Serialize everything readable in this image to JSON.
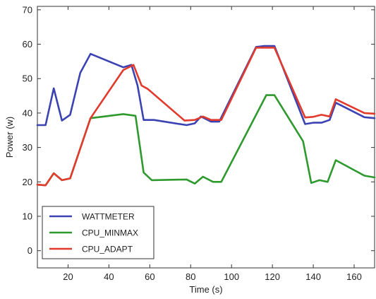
{
  "chart_data": {
    "type": "line",
    "xlabel": "Time (s)",
    "ylabel": "Power (w)",
    "xlim": [
      5,
      170
    ],
    "ylim": [
      -5,
      71
    ],
    "xticks": [
      20,
      40,
      60,
      80,
      100,
      120,
      140,
      160
    ],
    "yticks": [
      0,
      10,
      20,
      30,
      40,
      50,
      60,
      70
    ],
    "grid": false,
    "legend_position": "bottom-left",
    "series": [
      {
        "name": "WATTMETER",
        "color": "#3a43b1",
        "points": [
          [
            5,
            36.5
          ],
          [
            9,
            36.5
          ],
          [
            13,
            47.2
          ],
          [
            17,
            37.8
          ],
          [
            21,
            39.5
          ],
          [
            26,
            51.7
          ],
          [
            31,
            57.2
          ],
          [
            47,
            53.3
          ],
          [
            51,
            54.0
          ],
          [
            54,
            48.0
          ],
          [
            57,
            38.0
          ],
          [
            62,
            38.0
          ],
          [
            78,
            36.5
          ],
          [
            82,
            37.0
          ],
          [
            85,
            39.0
          ],
          [
            90,
            37.5
          ],
          [
            94,
            37.5
          ],
          [
            112,
            59.2
          ],
          [
            116,
            59.5
          ],
          [
            121,
            59.5
          ],
          [
            136,
            36.8
          ],
          [
            140,
            37.2
          ],
          [
            144,
            37.2
          ],
          [
            148,
            38.0
          ],
          [
            151,
            43.0
          ],
          [
            165,
            38.8
          ],
          [
            170,
            38.5
          ]
        ]
      },
      {
        "name": "CPU_MINMAX",
        "color": "#2e9a2e",
        "points": [
          [
            5,
            19.2
          ],
          [
            9,
            19.0
          ],
          [
            13,
            22.5
          ],
          [
            17,
            20.5
          ],
          [
            21,
            21.0
          ],
          [
            31,
            38.5
          ],
          [
            47,
            39.7
          ],
          [
            53,
            39.2
          ],
          [
            57,
            22.7
          ],
          [
            61,
            20.5
          ],
          [
            78,
            20.7
          ],
          [
            82,
            19.5
          ],
          [
            86,
            21.5
          ],
          [
            91,
            20.0
          ],
          [
            95,
            20.0
          ],
          [
            117,
            45.2
          ],
          [
            121,
            45.2
          ],
          [
            135,
            31.8
          ],
          [
            139,
            19.7
          ],
          [
            143,
            20.5
          ],
          [
            147,
            20.0
          ],
          [
            151,
            26.3
          ],
          [
            165,
            21.8
          ],
          [
            170,
            21.3
          ]
        ]
      },
      {
        "name": "CPU_ADAPT",
        "color": "#e23a2d",
        "points": [
          [
            5,
            19.2
          ],
          [
            9,
            19.0
          ],
          [
            13,
            22.5
          ],
          [
            17,
            20.5
          ],
          [
            21,
            21.0
          ],
          [
            31,
            38.5
          ],
          [
            47,
            52.5
          ],
          [
            52,
            54.0
          ],
          [
            56,
            48.0
          ],
          [
            59,
            47.0
          ],
          [
            77,
            37.8
          ],
          [
            82,
            38.0
          ],
          [
            86,
            39.0
          ],
          [
            90,
            38.0
          ],
          [
            95,
            38.0
          ],
          [
            112,
            59.0
          ],
          [
            121,
            59.0
          ],
          [
            136,
            38.7
          ],
          [
            140,
            38.9
          ],
          [
            144,
            39.5
          ],
          [
            148,
            39.0
          ],
          [
            151,
            44.0
          ],
          [
            165,
            40.0
          ],
          [
            170,
            39.8
          ]
        ]
      }
    ]
  }
}
